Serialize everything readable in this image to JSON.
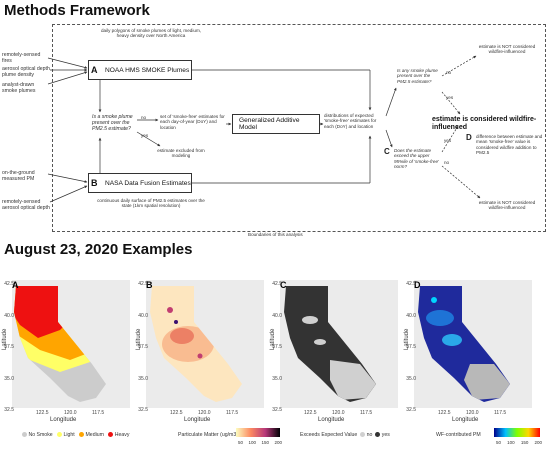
{
  "section1_title": "Methods Framework",
  "section2_title": "August 23, 2020 Examples",
  "inputs": {
    "fires": "remotely-sensed fires",
    "aod_plume": "aerosol optical depth plume density",
    "analyst": "analyst-drawn smoke plumes",
    "ground_pm": "on-the-ground measured PM",
    "aod": "remotely-sensed aerosol optical depth"
  },
  "box_a": {
    "tag": "A",
    "label": "NOAA HMS SMOKE Plumes",
    "note": "daily polygons of smoke plumes of light, medium, heavy density over North America"
  },
  "box_b": {
    "tag": "B",
    "label": "NASA Data Fusion Estimates",
    "note": "continuous daily surface of PM2.5 estimates over the state (1km spatial resolution)"
  },
  "gam_label": "Generalized Additive Model",
  "question1": "Is a smoke plume present over the PM2.5 estimate?",
  "yes": "yes",
  "no": "no",
  "smoke_free_set": "set of 'smoke-free' estimates for each day-of-year (DoY) and location",
  "excluded": "estimate excluded from modeling",
  "distributions": "distributions of expected 'smoke-free' estimates for each (DoY) and location",
  "question2": "Is any smoke plume present over the PM2.5 estimate?",
  "question3_tag": "C",
  "question3": "Does the estimate exceed the upper 95%ile of 'smoke-free' norm?",
  "not_wildfire_top": "estimate is NOT considered wildfire-influenced",
  "not_wildfire_bottom": "estimate is NOT considered wildfire-influenced",
  "wildfire": "estimate is considered wildfire-influenced",
  "d_tag": "D",
  "d_text": "difference between estimate and mean 'smoke-free' value is considered wildfire addition to PM2.5",
  "boundary": "Boundaries of this analysis",
  "panels": [
    {
      "letter": "A",
      "legend_title": "",
      "legend_items": [
        "No Smoke",
        "Light",
        "Medium",
        "Heavy"
      ],
      "legend_colors": [
        "#cccccc",
        "#ffff66",
        "#ffa500",
        "#ee1111"
      ]
    },
    {
      "letter": "B",
      "legend_title": "Particulate Matter (ug/m3)",
      "ticks": [
        "50",
        "100",
        "150",
        "200"
      ]
    },
    {
      "letter": "C",
      "legend_title": "Exceeds Expected Value",
      "legend_items": [
        "no",
        "yes"
      ],
      "legend_colors": [
        "#d0d0d0",
        "#333333"
      ]
    },
    {
      "letter": "D",
      "legend_title": "WF-contributed PM",
      "ticks": [
        "50",
        "100",
        "150",
        "200"
      ]
    }
  ],
  "axes": {
    "xlabel": "Longitude",
    "ylabel": "Latitude",
    "yticks": [
      "42.5",
      "40.0",
      "37.5",
      "35.0",
      "32.5"
    ],
    "xticks": [
      "122.5",
      "120.0",
      "117.5"
    ]
  }
}
